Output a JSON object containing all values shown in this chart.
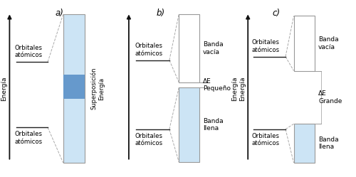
{
  "bg_color": "#ffffff",
  "title_a": "a)",
  "title_b": "b)",
  "title_c": "c)",
  "colors": {
    "rect_edge": "#999999",
    "rect_fill_empty": "#ffffff",
    "rect_fill_light_blue": "#cce4f5",
    "rect_fill_blue_center": "#6699cc",
    "dashed_line": "#aaaaaa",
    "arrow": "#111111",
    "text": "#111111",
    "orb_line": "#222222"
  }
}
